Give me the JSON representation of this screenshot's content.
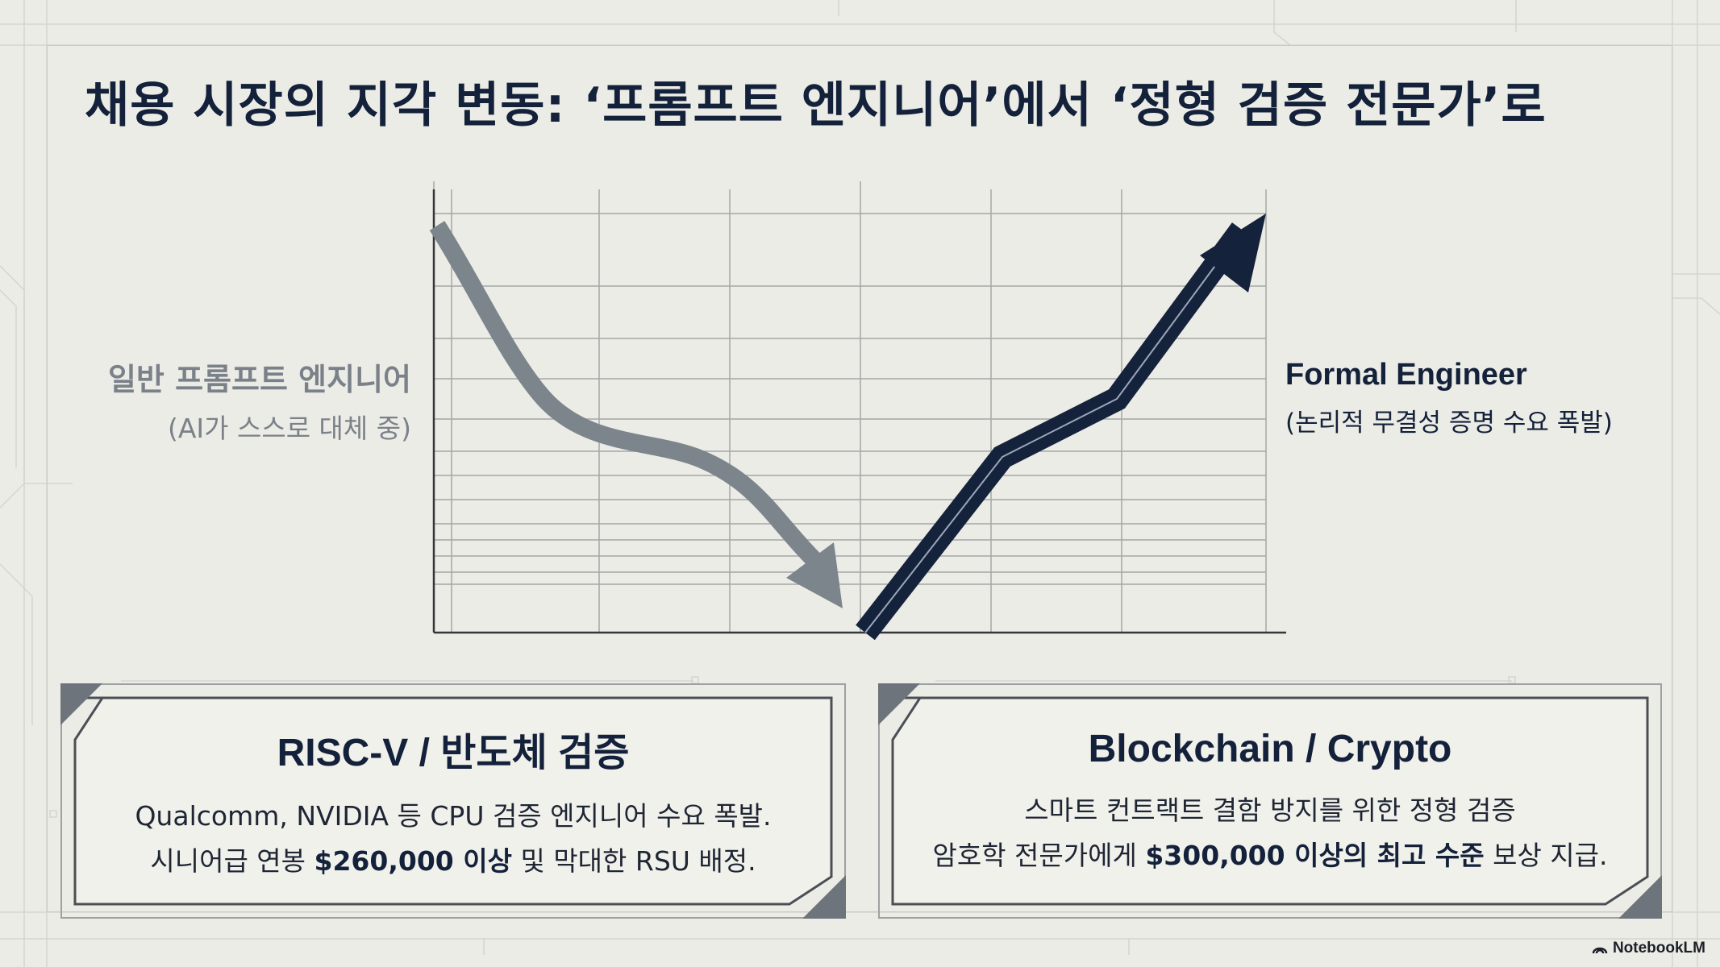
{
  "title": "채용 시장의 지각 변동: ‘프롬프트 엔지니어’에서 ‘정형 검증 전문가’로",
  "chart": {
    "left_label": {
      "line1": "일반 프롬프트 엔지니어",
      "line2": "(AI가 스스로 대체 중)"
    },
    "right_label": {
      "line1": "Formal Engineer",
      "line2": "(논리적 무결성 증명 수요 폭발)"
    },
    "colors": {
      "declining": "#7c858c",
      "rising": "#15223c",
      "grid": "#9a9d9d"
    }
  },
  "cards": [
    {
      "heading": "RISC-V / 반도체 검증",
      "line1": "Qualcomm, NVIDIA 등 CPU 검증 엔지니어 수요 폭발.",
      "line2_pre": "시니어급 연봉 ",
      "line2_bold": "$260,000 이상",
      "line2_post": " 및 막대한 RSU 배정."
    },
    {
      "heading": "Blockchain / Crypto",
      "line1": "스마트 컨트랙트 결함 방지를 위한 정형 검증",
      "line2_pre": "암호학 전문가에게 ",
      "line2_bold": "$300,000 이상의 최고 수준",
      "line2_post": " 보상 지급."
    }
  ],
  "watermark": "NotebookLM"
}
